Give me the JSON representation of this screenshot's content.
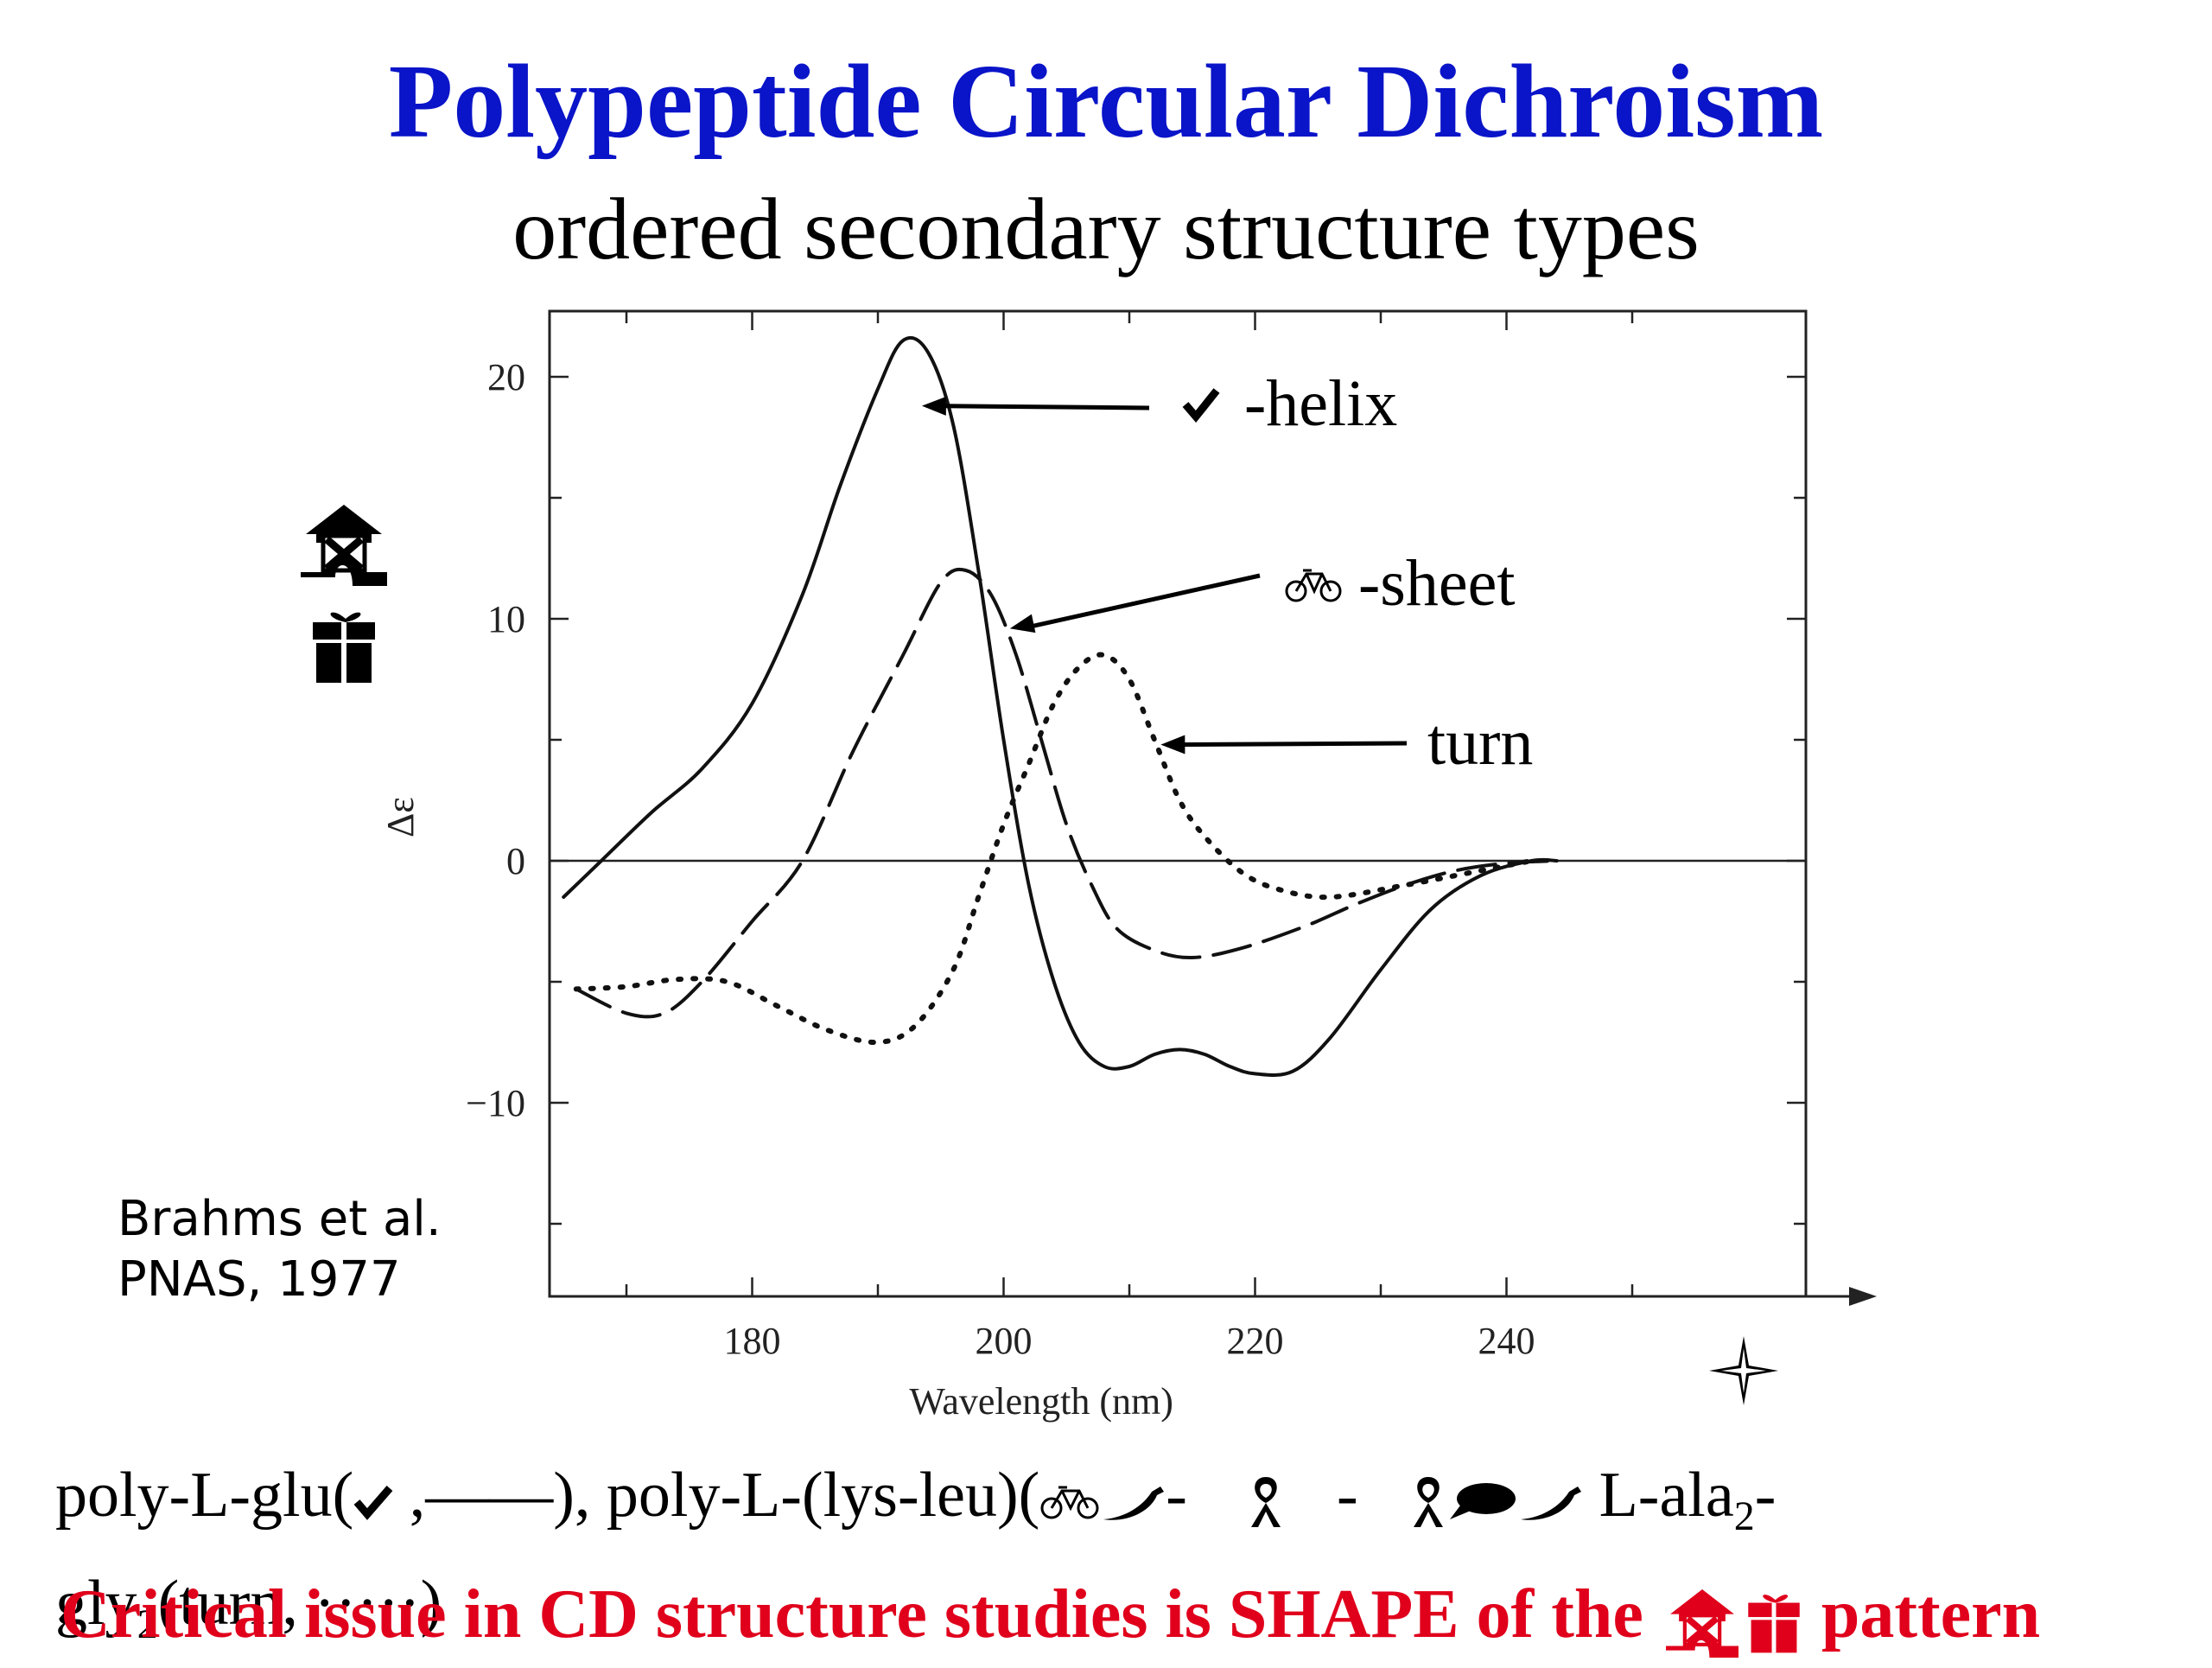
{
  "slide": {
    "title": "Polypeptide Circular Dichroism",
    "subtitle": "ordered secondary structure types",
    "citation_line1": "Brahms et al.",
    "citation_line2": "PNAS, 1977",
    "caption_part1": "poly-L-glu(",
    "caption_part2": " ,——), poly-L-(lys-leu)(",
    "caption_part3": "-",
    "caption_part4": " - ",
    "caption_part5": " L-ala",
    "caption_sub1": "2",
    "caption_part6": "-",
    "caption_part7": "gly",
    "caption_sub2": "2",
    "caption_part8": "(turn, ·····)",
    "footer_part1": "Critical issue in CD structure studies is SHAPE of the ",
    "footer_part2": " pattern",
    "title_color": "#0a14c8",
    "footer_color": "#e0001c",
    "icons": [
      "check-icon",
      "bicycle-icon",
      "pepper-icon",
      "ribbon-icon",
      "speech-bubble-icon",
      "house-icon",
      "gift-icon",
      "star-icon"
    ]
  },
  "chart_data": {
    "type": "line",
    "xlabel": "Wavelength (nm)",
    "ylabel": "Δε",
    "xlim": [
      160,
      260
    ],
    "ylim": [
      -18,
      23
    ],
    "x_ticks": [
      180,
      200,
      220,
      240
    ],
    "y_ticks": [
      20,
      10,
      0,
      -10
    ],
    "grid": false,
    "series": [
      {
        "name": "-helix",
        "style": "solid",
        "points": [
          [
            165,
            -1.5
          ],
          [
            168,
            0
          ],
          [
            172,
            2
          ],
          [
            176,
            3.8
          ],
          [
            180,
            6.5
          ],
          [
            184,
            11
          ],
          [
            187,
            15.5
          ],
          [
            190,
            19.5
          ],
          [
            192,
            21.5
          ],
          [
            194,
            21
          ],
          [
            196,
            18
          ],
          [
            198,
            12
          ],
          [
            200,
            5
          ],
          [
            202,
            -1
          ],
          [
            204,
            -5
          ],
          [
            206,
            -7.5
          ],
          [
            208,
            -8.5
          ],
          [
            210,
            -8.5
          ],
          [
            212,
            -8
          ],
          [
            214,
            -7.8
          ],
          [
            216,
            -8
          ],
          [
            218,
            -8.5
          ],
          [
            220,
            -8.8
          ],
          [
            223,
            -8.7
          ],
          [
            226,
            -7.3
          ],
          [
            230,
            -4.5
          ],
          [
            234,
            -2
          ],
          [
            238,
            -0.6
          ],
          [
            242,
            0
          ],
          [
            244,
            0
          ]
        ]
      },
      {
        "name": "-sheet",
        "style": "dash",
        "points": [
          [
            166,
            -5.3
          ],
          [
            170,
            -6.3
          ],
          [
            173,
            -6.3
          ],
          [
            176,
            -5
          ],
          [
            180,
            -2.5
          ],
          [
            184,
            0
          ],
          [
            188,
            4.5
          ],
          [
            192,
            8.5
          ],
          [
            195,
            11.5
          ],
          [
            197,
            12
          ],
          [
            199,
            11
          ],
          [
            201,
            8.5
          ],
          [
            203,
            5
          ],
          [
            205,
            1.5
          ],
          [
            207,
            -1
          ],
          [
            209,
            -2.8
          ],
          [
            212,
            -3.7
          ],
          [
            215,
            -4
          ],
          [
            219,
            -3.6
          ],
          [
            224,
            -2.7
          ],
          [
            228,
            -1.8
          ],
          [
            232,
            -1
          ],
          [
            236,
            -0.4
          ],
          [
            240,
            -0.1
          ],
          [
            244,
            0
          ]
        ]
      },
      {
        "name": "turn",
        "style": "dot",
        "points": [
          [
            166,
            -5.3
          ],
          [
            170,
            -5.2
          ],
          [
            174,
            -4.9
          ],
          [
            178,
            -5
          ],
          [
            182,
            -6
          ],
          [
            186,
            -7
          ],
          [
            190,
            -7.5
          ],
          [
            193,
            -6.8
          ],
          [
            196,
            -4.5
          ],
          [
            198,
            -1.5
          ],
          [
            200,
            1.5
          ],
          [
            202,
            4
          ],
          [
            204,
            6.5
          ],
          [
            206,
            8
          ],
          [
            208,
            8.5
          ],
          [
            210,
            7.5
          ],
          [
            212,
            5
          ],
          [
            214,
            2.5
          ],
          [
            216,
            1
          ],
          [
            219,
            -0.5
          ],
          [
            222,
            -1.2
          ],
          [
            226,
            -1.5
          ],
          [
            232,
            -1
          ],
          [
            238,
            -0.4
          ],
          [
            242,
            0
          ]
        ]
      }
    ],
    "annotations": [
      {
        "text": "-helix",
        "points_to": [
          193.5,
          18.8
        ]
      },
      {
        "text": "-sheet",
        "points_to": [
          200.5,
          9.6
        ]
      },
      {
        "text": "turn",
        "points_to": [
          212.5,
          4.8
        ]
      }
    ]
  }
}
